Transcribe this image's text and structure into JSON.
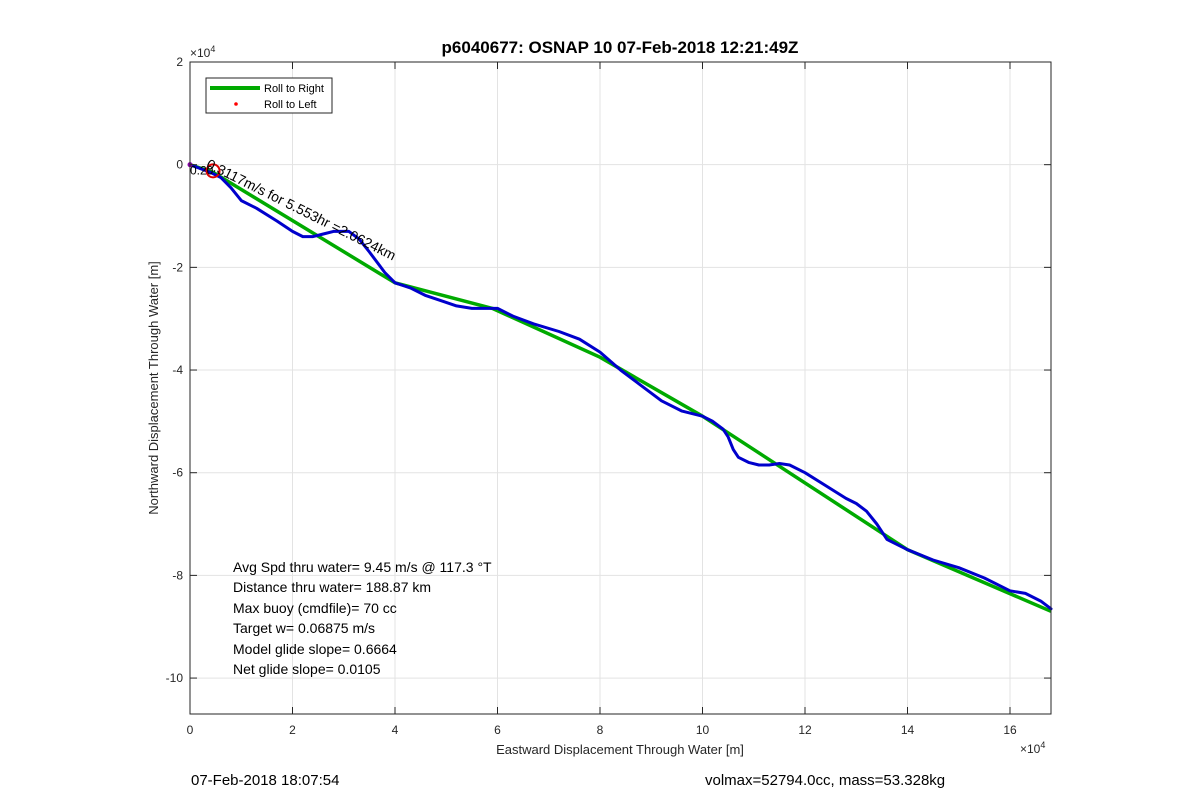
{
  "chart_data": {
    "type": "line",
    "title": "p6040677: OSNAP 10 07-Feb-2018 12:21:49Z",
    "xlabel": "Eastward Displacement Through Water [m]",
    "ylabel": "Northward Displacement Through Water [m]",
    "x_exponent_label": "×10",
    "y_exponent_label": "×10",
    "exponent": "4",
    "xlim": [
      0,
      168000
    ],
    "ylim": [
      -107000,
      20000
    ],
    "xticks": [
      0,
      20000,
      40000,
      60000,
      80000,
      100000,
      120000,
      140000,
      160000
    ],
    "xtick_labels": [
      "0",
      "2",
      "4",
      "6",
      "8",
      "10",
      "12",
      "14",
      "16"
    ],
    "yticks": [
      20000,
      0,
      -20000,
      -40000,
      -60000,
      -80000,
      -100000
    ],
    "ytick_labels": [
      "2",
      "0",
      "-2",
      "-4",
      "-6",
      "-8",
      "-10"
    ],
    "grid": true,
    "legend_position": "top-left",
    "colors": {
      "roll_right": "#00aa00",
      "roll_left": "#ff0000",
      "track": "#0000cc",
      "marker": "#dd0000",
      "start": "#8800aa"
    },
    "series": [
      {
        "name": "Roll to Right",
        "style": "line",
        "x": [
          0,
          4500,
          40000,
          59000,
          80000,
          100000,
          140000,
          168000
        ],
        "y": [
          0,
          -1500,
          -23000,
          -28000,
          -37500,
          -49000,
          -75000,
          -87000
        ]
      },
      {
        "name": "Roll to Left",
        "style": "points",
        "x": [],
        "y": []
      },
      {
        "style": "line",
        "x": [
          0,
          4000,
          6000,
          8000,
          10000,
          13000,
          17000,
          20000,
          22000,
          24000,
          26000,
          28000,
          31000,
          33000,
          35000,
          38000,
          40000,
          43000,
          46000,
          49000,
          52000,
          55000,
          57000,
          59000,
          60000,
          63000,
          67000,
          72000,
          76000,
          80000,
          84000,
          88000,
          92000,
          96000,
          100000,
          102000,
          104000,
          105000,
          106000,
          107000,
          109000,
          111000,
          113000,
          115000,
          117000,
          120000,
          124000,
          128000,
          130000,
          132000,
          134000,
          136000,
          140000,
          145000,
          150000,
          155000,
          158000,
          160000,
          163000,
          166000,
          168000
        ],
        "y": [
          0,
          -1500,
          -2500,
          -4500,
          -7000,
          -8500,
          -11000,
          -13000,
          -14000,
          -14000,
          -13500,
          -13000,
          -13000,
          -14500,
          -17000,
          -21000,
          -23000,
          -24000,
          -25500,
          -26500,
          -27500,
          -28000,
          -28000,
          -28000,
          -28000,
          -29500,
          -31000,
          -32500,
          -34000,
          -36500,
          -40000,
          -43000,
          -46000,
          -48000,
          -49000,
          -50000,
          -51500,
          -53000,
          -55500,
          -57000,
          -58000,
          -58500,
          -58500,
          -58200,
          -58500,
          -60000,
          -62500,
          -65000,
          -66000,
          -67500,
          -70000,
          -73000,
          -75000,
          -77000,
          -78500,
          -80500,
          -82000,
          -83000,
          -83500,
          -85000,
          -86500
        ]
      }
    ],
    "annotation_track": "0.3117m/s for 5.553hr =2.0624km",
    "annotation_start": "0.20",
    "stats": [
      "Avg Spd thru water=  9.45 m/s @ 117.3 °T",
      "Distance thru water= 188.87 km",
      "Max buoy (cmdfile)= 70 cc",
      "Target w= 0.06875 m/s",
      "Model glide slope= 0.6664",
      "Net glide slope= 0.0105"
    ]
  },
  "footer": {
    "left": "07-Feb-2018 18:07:54",
    "right": "volmax=52794.0cc, mass=53.328kg"
  }
}
